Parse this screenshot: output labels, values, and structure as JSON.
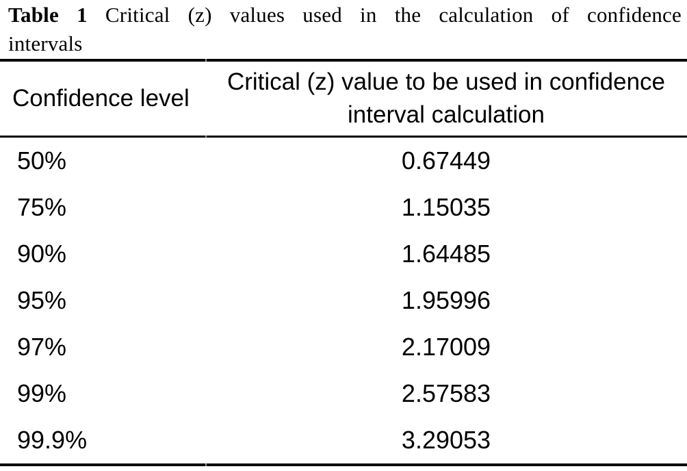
{
  "caption": {
    "label": "Table 1",
    "line1": "Critical (z) values used in the calculation of confidence",
    "line2": "intervals"
  },
  "table": {
    "columns": [
      "Confidence level",
      "Critical (z) value to be used in confidence interval calculation"
    ],
    "rows": [
      {
        "level": "50%",
        "z": "0.67449"
      },
      {
        "level": "75%",
        "z": "1.15035"
      },
      {
        "level": "90%",
        "z": "1.64485"
      },
      {
        "level": "95%",
        "z": "1.95996"
      },
      {
        "level": "97%",
        "z": "2.17009"
      },
      {
        "level": "99%",
        "z": "2.57583"
      },
      {
        "level": "99.9%",
        "z": "3.29053"
      }
    ]
  },
  "colors": {
    "background": "#ffffff",
    "text": "#000000",
    "rule": "#000000"
  }
}
